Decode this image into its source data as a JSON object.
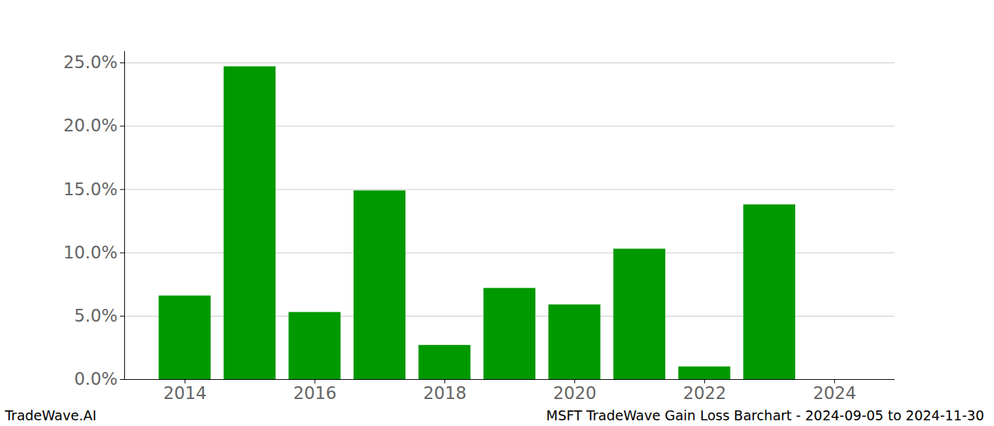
{
  "chart_data": {
    "type": "bar",
    "annotations": [
      "TradeWave.AI",
      "MSFT TradeWave Gain Loss Barchart - 2024-09-05 to 2024-11-30"
    ],
    "x": [
      2014,
      2015,
      2016,
      2017,
      2018,
      2019,
      2020,
      2021,
      2022,
      2023
    ],
    "values": [
      6.6,
      24.7,
      5.3,
      14.9,
      2.7,
      7.2,
      5.9,
      10.3,
      1.0,
      13.8
    ],
    "color": "#009900",
    "xlim": [
      2013.07,
      2024.93
    ],
    "xticks": [
      2014,
      2016,
      2018,
      2020,
      2022,
      2024
    ],
    "ylim": [
      0,
      25.9
    ],
    "yticks": [
      {
        "value": 0,
        "label": "0.0%"
      },
      {
        "value": 5,
        "label": "5.0%"
      },
      {
        "value": 10,
        "label": "10.0%"
      },
      {
        "value": 15,
        "label": "15.0%"
      },
      {
        "value": 20,
        "label": "20.0%"
      },
      {
        "value": 25,
        "label": "25.0%"
      }
    ],
    "grid": true
  }
}
